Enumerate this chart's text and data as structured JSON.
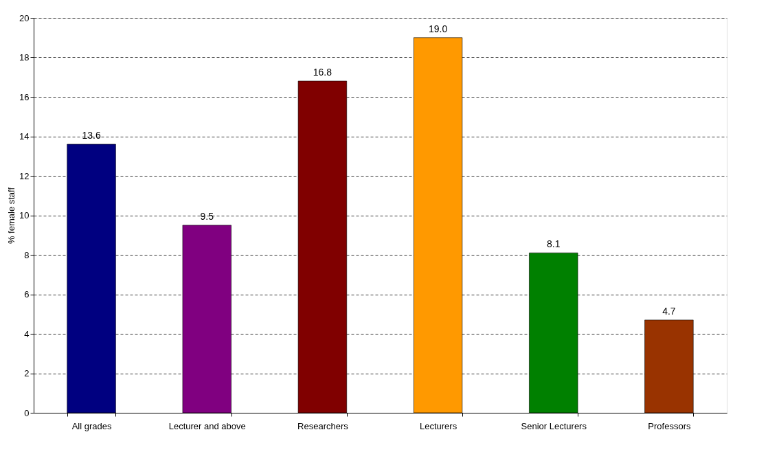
{
  "chart_data": {
    "type": "bar",
    "ylabel": "% female staff",
    "categories": [
      "All grades",
      "Lecturer and above",
      "Researchers",
      "Lecturers",
      "Senior Lecturers",
      "Professors"
    ],
    "values": [
      13.6,
      9.5,
      16.8,
      19.0,
      8.1,
      4.7
    ],
    "colors": [
      "#000080",
      "#800080",
      "#800000",
      "#ff9900",
      "#008000",
      "#993300"
    ],
    "value_labels": [
      "13.6",
      "9.5",
      "16.8",
      "19.0",
      "8.1",
      "4.7"
    ],
    "ylim": [
      0,
      20
    ],
    "yticks": [
      0,
      2,
      4,
      6,
      8,
      10,
      12,
      14,
      16,
      18,
      20
    ],
    "grid": "y",
    "legend": false
  }
}
